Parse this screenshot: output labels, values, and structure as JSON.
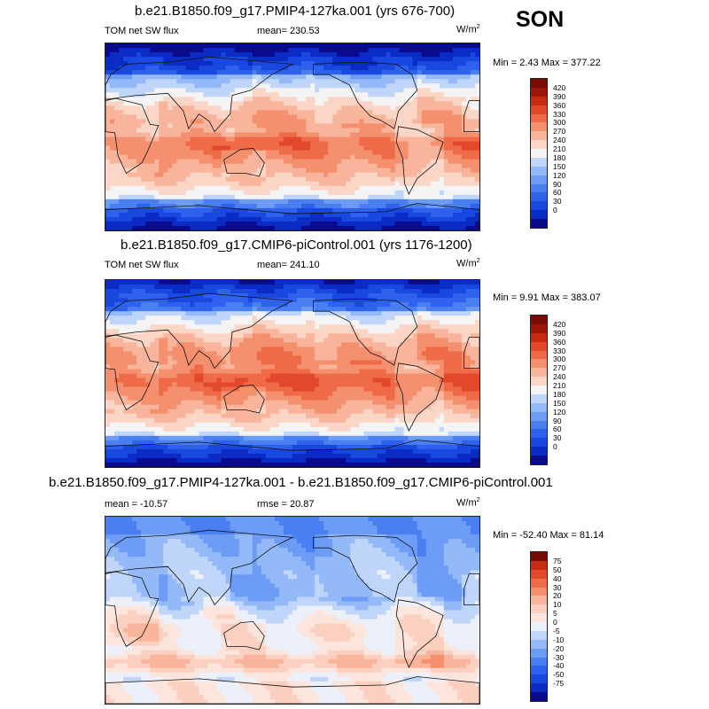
{
  "season": "SON",
  "colors": {
    "abs_scale": [
      "#0a0a8c",
      "#0b2cc4",
      "#1848e0",
      "#2f62ec",
      "#4a7ff2",
      "#6d9cf6",
      "#93b9f8",
      "#bfd5fa",
      "#f4f4f4",
      "#fbd6c6",
      "#f9b59c",
      "#f5906f",
      "#ef6b48",
      "#e2492b",
      "#c62c14",
      "#9e1608",
      "#7a0a04"
    ],
    "diff_scale": [
      "#0a0a8c",
      "#0b2cc4",
      "#1848e0",
      "#2f62ec",
      "#4a7ff2",
      "#6d9cf6",
      "#93b9f8",
      "#bfd5fa",
      "#ecf0fa",
      "#fbe5dc",
      "#fbd0c0",
      "#f9b59c",
      "#f5906f",
      "#ef6b48",
      "#e2492b",
      "#c62c14",
      "#7a0a04"
    ]
  },
  "panels": [
    {
      "title": "b.e21.B1850.f09_g17.PMIP4-127ka.001 (yrs 676-700)",
      "left_label": "TOM net SW flux",
      "center_label": "mean= 230.53",
      "units": "W/m",
      "units_exp": "2",
      "minmax": "Min =   2.43 Max = 377.22",
      "colorbar_labels": [
        "420",
        "390",
        "360",
        "330",
        "300",
        "270",
        "240",
        "210",
        "180",
        "150",
        "120",
        "90",
        "60",
        "30",
        "0"
      ],
      "field": {
        "base": 8.2,
        "amp": 7.6,
        "width": 0.55,
        "center_shift": 0.05
      }
    },
    {
      "title": "b.e21.B1850.f09_g17.CMIP6-piControl.001 (yrs 1176-1200)",
      "left_label": "TOM net SW flux",
      "center_label": "mean= 241.10",
      "units": "W/m",
      "units_exp": "2",
      "minmax": "Min =   9.91 Max = 383.07",
      "colorbar_labels": [
        "420",
        "390",
        "360",
        "330",
        "300",
        "270",
        "240",
        "210",
        "180",
        "150",
        "120",
        "90",
        "60",
        "30",
        "0"
      ],
      "field": {
        "base": 8.6,
        "amp": 7.8,
        "width": 0.55,
        "center_shift": 0.0
      }
    },
    {
      "title": "b.e21.B1850.f09_g17.PMIP4-127ka.001 - b.e21.B1850.f09_g17.CMIP6-piControl.001",
      "left_label": "mean = -10.57",
      "center_label": "rmse =  20.87",
      "units": "W/m",
      "units_exp": "2",
      "minmax": "Min = -52.40 Max =  81.14",
      "colorbar_labels": [
        "75",
        "50",
        "40",
        "30",
        "20",
        "10",
        "5",
        "0",
        "-5",
        "-10",
        "-20",
        "-30",
        "-40",
        "-50",
        "-75"
      ],
      "field": {
        "diff": true
      }
    }
  ]
}
